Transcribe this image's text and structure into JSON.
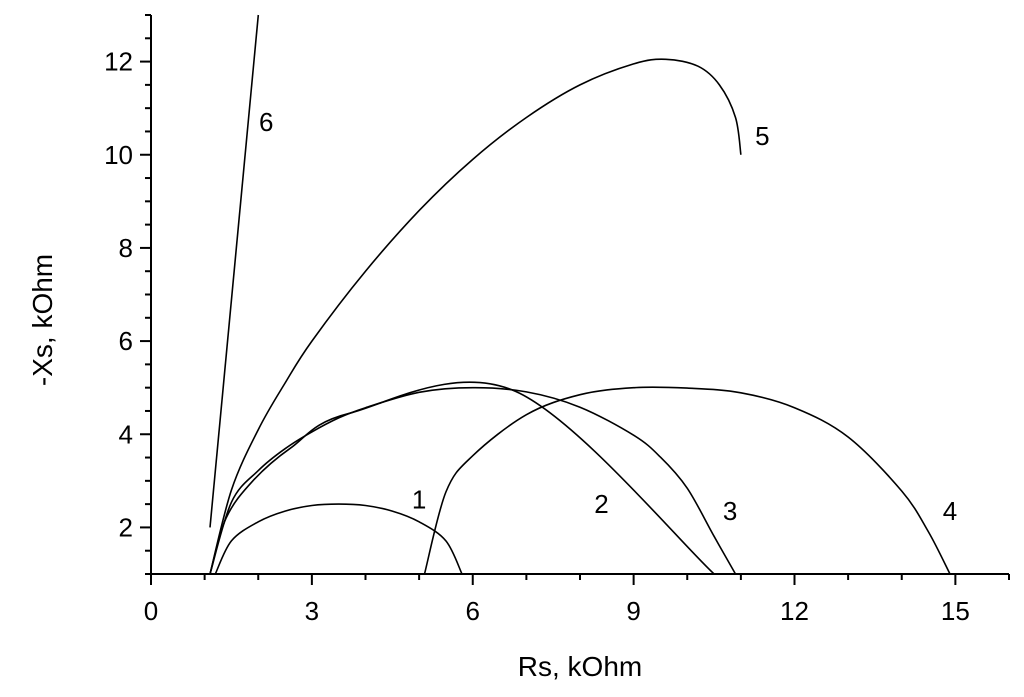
{
  "chart_data": {
    "type": "line",
    "title": "",
    "xlabel": "Rs, kOhm",
    "ylabel": "-Xs, kOhm",
    "xlim": [
      0,
      16
    ],
    "ylim": [
      1,
      13
    ],
    "x_ticks": [
      0,
      3,
      6,
      9,
      12,
      15
    ],
    "y_ticks": [
      2,
      4,
      6,
      8,
      10,
      12
    ],
    "x_minor_step": 1,
    "y_minor_step": 0.5,
    "grid": false,
    "legend": "none",
    "series": [
      {
        "label": "1",
        "label_at": [
          5.0,
          2.6
        ],
        "x": [
          1.2,
          1.5,
          2.0,
          2.5,
          3.0,
          3.5,
          4.0,
          4.5,
          5.0,
          5.5,
          5.8
        ],
        "y": [
          1.0,
          1.71,
          2.12,
          2.35,
          2.47,
          2.5,
          2.47,
          2.35,
          2.12,
          1.71,
          1.0
        ]
      },
      {
        "label": "2",
        "label_at": [
          8.4,
          2.5
        ],
        "x": [
          1.1,
          1.4,
          1.9,
          2.6,
          3.7,
          6.8,
          10.5
        ],
        "y": [
          1.0,
          2.2,
          3.0,
          3.7,
          4.45,
          4.92,
          1.0
        ]
      },
      {
        "label": "3",
        "label_at": [
          10.8,
          2.35
        ],
        "x": [
          1.1,
          1.5,
          2.0,
          2.5,
          3.0,
          3.5,
          4.0,
          5.0,
          6.0,
          7.0,
          8.0,
          9.0,
          9.5,
          10.0,
          10.5,
          10.9
        ],
        "y": [
          1.0,
          2.54,
          3.22,
          3.69,
          4.05,
          4.35,
          4.57,
          4.9,
          5.0,
          4.91,
          4.58,
          3.98,
          3.51,
          2.84,
          1.81,
          1.0
        ]
      },
      {
        "label": "4",
        "label_at": [
          14.9,
          2.35
        ],
        "x": [
          5.1,
          5.5,
          6.0,
          7.0,
          8.0,
          9.0,
          10.0,
          11.0,
          12.0,
          13.0,
          14.0,
          14.5,
          14.9
        ],
        "y": [
          1.0,
          2.76,
          3.54,
          4.42,
          4.85,
          5.0,
          4.99,
          4.89,
          4.57,
          3.94,
          2.78,
          1.9,
          1.0
        ]
      },
      {
        "label": "5",
        "label_at": [
          11.4,
          10.4
        ],
        "x": [
          1.1,
          1.5,
          2.0,
          2.5,
          3.0,
          4.0,
          5.0,
          6.0,
          7.0,
          8.0,
          9.0,
          9.6,
          10.2,
          10.6,
          10.9,
          11.0
        ],
        "y": [
          1.0,
          2.8,
          4.1,
          5.1,
          6.0,
          7.5,
          8.8,
          9.9,
          10.8,
          11.5,
          11.95,
          12.05,
          11.9,
          11.5,
          10.8,
          10.0
        ]
      },
      {
        "label": "6",
        "label_at": [
          2.15,
          10.7
        ],
        "x": [
          1.1,
          2.0
        ],
        "y": [
          2.0,
          13.0
        ]
      }
    ]
  }
}
